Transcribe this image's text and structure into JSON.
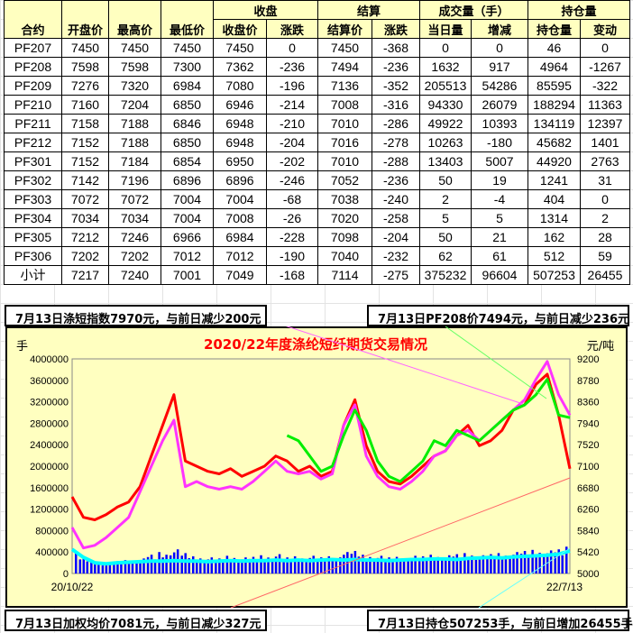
{
  "table": {
    "group_headers": [
      "收盘",
      "结算",
      "成交量（手）",
      "持仓量"
    ],
    "columns": [
      "合约",
      "开盘价",
      "最高价",
      "最低价",
      "收盘价",
      "涨跌",
      "结算价",
      "涨跌",
      "当日量",
      "增减",
      "持仓量",
      "变动"
    ],
    "rows": [
      [
        "PF207",
        "7450",
        "7450",
        "7450",
        "7450",
        "0",
        "7450",
        "-368",
        "0",
        "0",
        "46",
        "0"
      ],
      [
        "PF208",
        "7598",
        "7598",
        "7300",
        "7362",
        "-236",
        "7494",
        "-236",
        "1632",
        "917",
        "4964",
        "-1267"
      ],
      [
        "PF209",
        "7276",
        "7320",
        "6984",
        "7080",
        "-196",
        "7136",
        "-352",
        "205513",
        "54286",
        "85595",
        "-322"
      ],
      [
        "PF210",
        "7160",
        "7204",
        "6850",
        "6946",
        "-214",
        "7008",
        "-316",
        "94330",
        "26079",
        "188294",
        "11363"
      ],
      [
        "PF211",
        "7158",
        "7188",
        "6846",
        "6948",
        "-210",
        "7010",
        "-286",
        "49922",
        "10393",
        "134119",
        "12397"
      ],
      [
        "PF212",
        "7152",
        "7188",
        "6850",
        "6948",
        "-204",
        "7016",
        "-278",
        "10263",
        "-180",
        "45682",
        "1401"
      ],
      [
        "PF301",
        "7152",
        "7184",
        "6854",
        "6950",
        "-202",
        "7010",
        "-288",
        "13403",
        "5007",
        "44920",
        "2763"
      ],
      [
        "PF302",
        "7142",
        "7196",
        "6896",
        "6896",
        "-246",
        "7052",
        "-236",
        "50",
        "19",
        "1241",
        "31"
      ],
      [
        "PF303",
        "7072",
        "7072",
        "7004",
        "7004",
        "-68",
        "7038",
        "-240",
        "2",
        "-4",
        "404",
        "0"
      ],
      [
        "PF304",
        "7034",
        "7034",
        "7004",
        "7008",
        "-26",
        "7020",
        "-258",
        "5",
        "5",
        "1314",
        "2"
      ],
      [
        "PF305",
        "7212",
        "7246",
        "6966",
        "6984",
        "-228",
        "7098",
        "-204",
        "50",
        "21",
        "162",
        "28"
      ],
      [
        "PF306",
        "7202",
        "7202",
        "7012",
        "7012",
        "-190",
        "7040",
        "-232",
        "62",
        "61",
        "512",
        "59"
      ],
      [
        "小计",
        "7217",
        "7240",
        "7001",
        "7049",
        "-168",
        "7114",
        "-275",
        "375232",
        "96604",
        "507253",
        "26455"
      ]
    ]
  },
  "notes": {
    "top_left": "7月13日涤短指数7970元，与前日减少200元",
    "top_right": "7月13日PF208价7494元，与前日减少236元",
    "bottom_left": "7月13日加权均价7081元，与前日减少327元",
    "bottom_right": "7月13日持仓507253手，与前日增加26455手"
  },
  "chart_data": {
    "type": "line",
    "title": "2020/22年度涤纶短纤期货交易情况",
    "ylabel_left": "手",
    "ylabel_right": "元/吨",
    "x_start": "20/10/22",
    "x_end": "22/7/13",
    "ylim_left": [
      0,
      4000000
    ],
    "yticks_left": [
      "0",
      "400000",
      "800000",
      "1200000",
      "1600000",
      "2000000",
      "2400000",
      "2800000",
      "3200000",
      "3600000",
      "4000000"
    ],
    "ylim_right": [
      5000,
      9200
    ],
    "yticks_right": [
      "5000",
      "5420",
      "5840",
      "6260",
      "6680",
      "7100",
      "7520",
      "7940",
      "8360",
      "8780",
      "9200"
    ],
    "background": "#ffffc0",
    "series": [
      {
        "axis": "right",
        "color": "#ff0000",
        "values": [
          6500,
          6100,
          6050,
          6150,
          6300,
          6400,
          6700,
          7300,
          7900,
          8500,
          7200,
          7100,
          7000,
          6950,
          7050,
          6900,
          7000,
          7100,
          7300,
          7200,
          7000,
          7100,
          6900,
          7000,
          7900,
          8400,
          7500,
          7000,
          6800,
          6750,
          6900,
          7100,
          7300,
          7400,
          7700,
          7900,
          7500,
          7600,
          7800,
          8200,
          8300,
          8700,
          8900,
          8100,
          7050
        ]
      },
      {
        "axis": "right",
        "color": "#ff33ff",
        "values": [
          5900,
          5500,
          5550,
          5700,
          5900,
          6100,
          6600,
          7100,
          7600,
          8000,
          6700,
          6800,
          6700,
          6650,
          6700,
          6650,
          6800,
          7000,
          7200,
          7000,
          6950,
          7000,
          6850,
          6950,
          7900,
          8300,
          7300,
          6900,
          6700,
          6650,
          6800,
          7000,
          7300,
          7400,
          7700,
          7800,
          7600,
          7800,
          8000,
          8200,
          8400,
          8800,
          9150,
          8500,
          8100
        ]
      },
      {
        "axis": "right",
        "color": "#00ee00",
        "values": [
          null,
          null,
          null,
          null,
          null,
          null,
          null,
          null,
          null,
          null,
          null,
          null,
          null,
          null,
          null,
          null,
          null,
          null,
          null,
          7700,
          7600,
          7300,
          7000,
          7100,
          7700,
          8200,
          7800,
          7200,
          6900,
          6800,
          7000,
          7200,
          7600,
          7500,
          7800,
          7700,
          7600,
          7800,
          8000,
          8200,
          8300,
          8500,
          8800,
          8100,
          8050
        ]
      },
      {
        "axis": "left",
        "color": "#00ffff",
        "values": [
          450000,
          300000,
          200000,
          180000,
          200000,
          210000,
          220000,
          230000,
          230000,
          240000,
          230000,
          230000,
          220000,
          230000,
          240000,
          230000,
          240000,
          240000,
          250000,
          240000,
          250000,
          240000,
          250000,
          260000,
          250000,
          260000,
          250000,
          250000,
          240000,
          250000,
          260000,
          260000,
          270000,
          270000,
          260000,
          280000,
          290000,
          300000,
          290000,
          310000,
          320000,
          330000,
          340000,
          360000,
          420000
        ]
      }
    ],
    "bars": {
      "axis": "left",
      "color": "#0000ff",
      "values": [
        420000,
        300000,
        250000,
        200000,
        230000,
        250000,
        280000,
        350000,
        400000,
        450000,
        380000,
        320000,
        300000,
        280000,
        330000,
        300000,
        310000,
        340000,
        360000,
        300000,
        320000,
        330000,
        300000,
        320000,
        400000,
        420000,
        350000,
        330000,
        300000,
        310000,
        330000,
        320000,
        350000,
        340000,
        360000,
        380000,
        340000,
        360000,
        380000,
        400000,
        420000,
        440000,
        430000,
        450000,
        500000
      ]
    }
  }
}
